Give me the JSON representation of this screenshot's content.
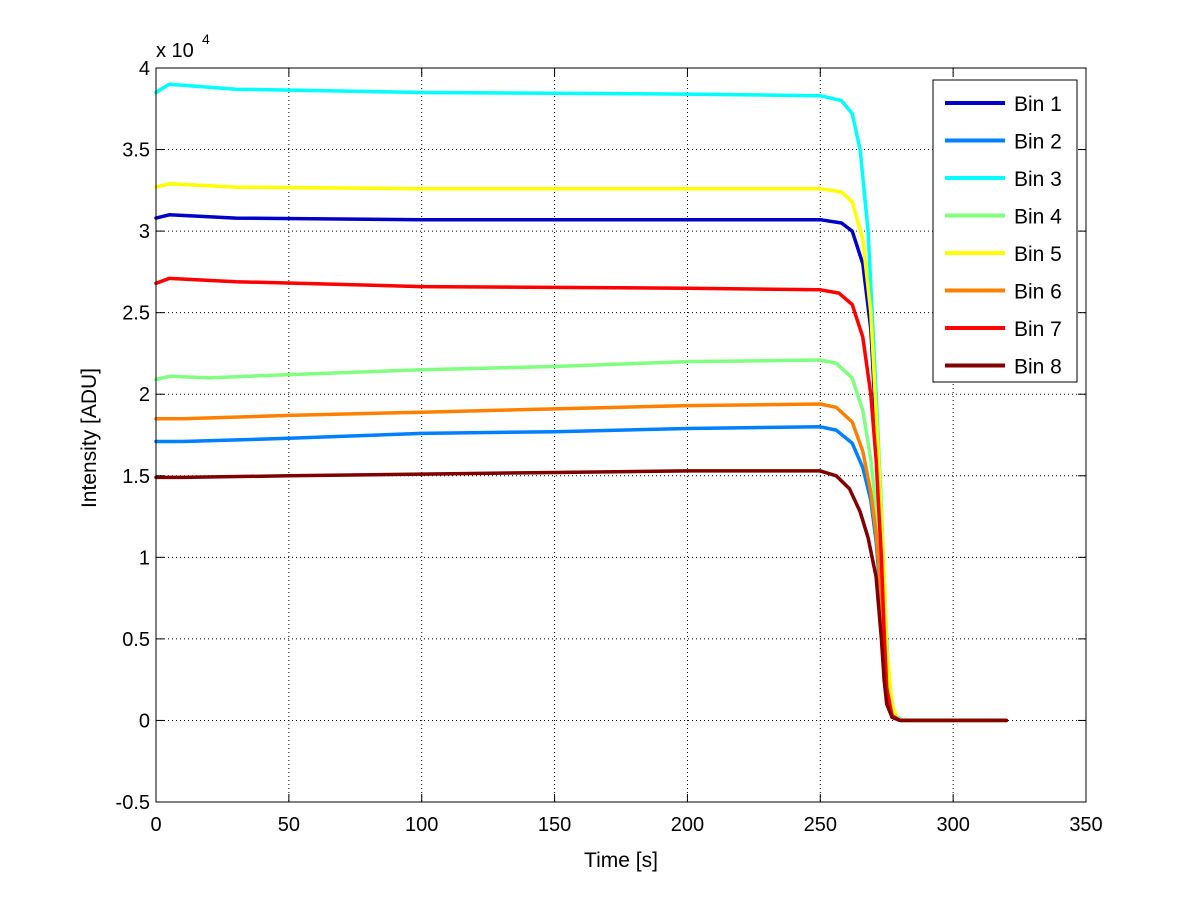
{
  "chart_data": {
    "type": "line",
    "title": "",
    "xlabel": "Time [s]",
    "ylabel": "Intensity [ADU]",
    "y_multiplier_label": "x 10",
    "y_multiplier_exponent": "4",
    "xlim": [
      0,
      350
    ],
    "ylim": [
      -0.5,
      4
    ],
    "grid": true,
    "legend_position": "top-right",
    "x_ticks": [
      0,
      50,
      100,
      150,
      200,
      250,
      300,
      350
    ],
    "x_tick_labels": [
      "0",
      "50",
      "100",
      "150",
      "200",
      "250",
      "300",
      "350"
    ],
    "y_ticks": [
      -0.5,
      0,
      0.5,
      1,
      1.5,
      2,
      2.5,
      3,
      3.5,
      4
    ],
    "y_tick_labels": [
      "-0.5",
      "0",
      "0.5",
      "1",
      "1.5",
      "2",
      "2.5",
      "3",
      "3.5",
      "4"
    ],
    "series": [
      {
        "name": "Bin 1",
        "color": "#0000c8",
        "points": [
          [
            0,
            3.08
          ],
          [
            5,
            3.1
          ],
          [
            30,
            3.08
          ],
          [
            100,
            3.07
          ],
          [
            200,
            3.07
          ],
          [
            250,
            3.07
          ],
          [
            258,
            3.05
          ],
          [
            262,
            3.0
          ],
          [
            266,
            2.8
          ],
          [
            269,
            2.4
          ],
          [
            271,
            1.8
          ],
          [
            273,
            1.0
          ],
          [
            274,
            0.5
          ],
          [
            275,
            0.15
          ],
          [
            277,
            0.02
          ],
          [
            280,
            0
          ],
          [
            320,
            0
          ]
        ]
      },
      {
        "name": "Bin 2",
        "color": "#0080ff",
        "points": [
          [
            0,
            1.71
          ],
          [
            10,
            1.71
          ],
          [
            50,
            1.73
          ],
          [
            100,
            1.76
          ],
          [
            150,
            1.77
          ],
          [
            200,
            1.79
          ],
          [
            250,
            1.8
          ],
          [
            256,
            1.78
          ],
          [
            262,
            1.7
          ],
          [
            266,
            1.55
          ],
          [
            269,
            1.35
          ],
          [
            271,
            1.1
          ],
          [
            273,
            0.7
          ],
          [
            274,
            0.35
          ],
          [
            275,
            0.12
          ],
          [
            277,
            0.02
          ],
          [
            280,
            0
          ],
          [
            320,
            0
          ]
        ]
      },
      {
        "name": "Bin 3",
        "color": "#00ffff",
        "points": [
          [
            0,
            3.85
          ],
          [
            5,
            3.9
          ],
          [
            30,
            3.87
          ],
          [
            100,
            3.85
          ],
          [
            200,
            3.84
          ],
          [
            250,
            3.83
          ],
          [
            258,
            3.8
          ],
          [
            262,
            3.72
          ],
          [
            265,
            3.5
          ],
          [
            268,
            3.0
          ],
          [
            271,
            2.0
          ],
          [
            273,
            1.3
          ],
          [
            275,
            0.5
          ],
          [
            276,
            0.2
          ],
          [
            278,
            0.03
          ],
          [
            281,
            0
          ],
          [
            320,
            0
          ]
        ]
      },
      {
        "name": "Bin 4",
        "color": "#80ff80",
        "points": [
          [
            0,
            2.09
          ],
          [
            5,
            2.11
          ],
          [
            20,
            2.1
          ],
          [
            50,
            2.12
          ],
          [
            100,
            2.15
          ],
          [
            150,
            2.17
          ],
          [
            200,
            2.2
          ],
          [
            250,
            2.21
          ],
          [
            256,
            2.19
          ],
          [
            262,
            2.1
          ],
          [
            266,
            1.9
          ],
          [
            269,
            1.6
          ],
          [
            271,
            1.3
          ],
          [
            273,
            0.8
          ],
          [
            274,
            0.4
          ],
          [
            275,
            0.15
          ],
          [
            277,
            0.02
          ],
          [
            280,
            0
          ],
          [
            320,
            0
          ]
        ]
      },
      {
        "name": "Bin 5",
        "color": "#ffff00",
        "points": [
          [
            0,
            3.27
          ],
          [
            5,
            3.29
          ],
          [
            30,
            3.27
          ],
          [
            100,
            3.26
          ],
          [
            200,
            3.26
          ],
          [
            250,
            3.26
          ],
          [
            258,
            3.24
          ],
          [
            262,
            3.18
          ],
          [
            266,
            2.95
          ],
          [
            269,
            2.5
          ],
          [
            272,
            1.6
          ],
          [
            274,
            0.9
          ],
          [
            275,
            0.45
          ],
          [
            277,
            0.1
          ],
          [
            279,
            0.01
          ],
          [
            282,
            0
          ],
          [
            320,
            0
          ]
        ]
      },
      {
        "name": "Bin 6",
        "color": "#ff8000",
        "points": [
          [
            0,
            1.85
          ],
          [
            10,
            1.85
          ],
          [
            50,
            1.87
          ],
          [
            100,
            1.89
          ],
          [
            150,
            1.91
          ],
          [
            200,
            1.93
          ],
          [
            250,
            1.94
          ],
          [
            256,
            1.92
          ],
          [
            262,
            1.83
          ],
          [
            266,
            1.65
          ],
          [
            269,
            1.4
          ],
          [
            271,
            1.15
          ],
          [
            273,
            0.75
          ],
          [
            274,
            0.4
          ],
          [
            275,
            0.15
          ],
          [
            277,
            0.02
          ],
          [
            280,
            0
          ],
          [
            320,
            0
          ]
        ]
      },
      {
        "name": "Bin 7",
        "color": "#ff0000",
        "points": [
          [
            0,
            2.68
          ],
          [
            5,
            2.71
          ],
          [
            30,
            2.69
          ],
          [
            100,
            2.66
          ],
          [
            200,
            2.65
          ],
          [
            250,
            2.64
          ],
          [
            257,
            2.62
          ],
          [
            262,
            2.55
          ],
          [
            266,
            2.35
          ],
          [
            269,
            2.0
          ],
          [
            271,
            1.6
          ],
          [
            273,
            1.0
          ],
          [
            274,
            0.55
          ],
          [
            275,
            0.2
          ],
          [
            277,
            0.03
          ],
          [
            280,
            0
          ],
          [
            320,
            0
          ]
        ]
      },
      {
        "name": "Bin 8",
        "color": "#800000",
        "points": [
          [
            0,
            1.49
          ],
          [
            10,
            1.49
          ],
          [
            50,
            1.5
          ],
          [
            100,
            1.51
          ],
          [
            150,
            1.52
          ],
          [
            200,
            1.53
          ],
          [
            250,
            1.53
          ],
          [
            256,
            1.5
          ],
          [
            261,
            1.42
          ],
          [
            265,
            1.28
          ],
          [
            268,
            1.12
          ],
          [
            271,
            0.88
          ],
          [
            273,
            0.5
          ],
          [
            274,
            0.25
          ],
          [
            275,
            0.1
          ],
          [
            277,
            0.02
          ],
          [
            280,
            0
          ],
          [
            320,
            0
          ]
        ]
      }
    ]
  }
}
